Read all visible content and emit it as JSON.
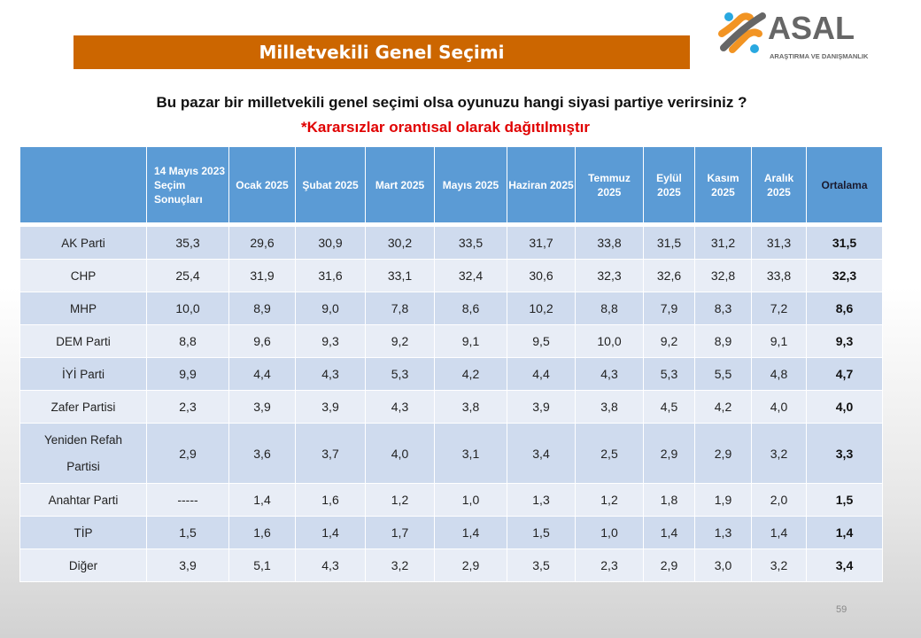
{
  "slide": {
    "title": "Milletvekili Genel Seçimi",
    "question": "Bu pazar bir milletvekili genel seçimi olsa oyunuzu hangi siyasi partiye verirsiniz ?",
    "note": "*Kararsızlar orantısal olarak dağıtılmıştır",
    "page_number": "59"
  },
  "logo": {
    "name": "ASAL",
    "tagline": "ARAŞTIRMA VE DANIŞMANLIK",
    "colors": {
      "orange": "#f29423",
      "blue": "#29a8e0",
      "gray": "#666666"
    }
  },
  "colors": {
    "title_bar": "#cc6600",
    "header": "#5b9bd5",
    "row_odd": "#cfdbee",
    "row_even": "#e8edf6",
    "note": "#e00000"
  },
  "table": {
    "headers": [
      "",
      "14 Mayıs 2023 Seçim Sonuçları",
      "Ocak 2025",
      "Şubat 2025",
      "Mart 2025",
      "Mayıs 2025",
      "Haziran 2025",
      "Temmuz 2025",
      "Eylül 2025",
      "Kasım 2025",
      "Aralık 2025",
      "Ortalama"
    ],
    "rows": [
      {
        "party": "AK Parti",
        "values": [
          "35,3",
          "29,6",
          "30,9",
          "30,2",
          "33,5",
          "31,7",
          "33,8",
          "31,5",
          "31,2",
          "31,3"
        ],
        "avg": "31,5"
      },
      {
        "party": "CHP",
        "values": [
          "25,4",
          "31,9",
          "31,6",
          "33,1",
          "32,4",
          "30,6",
          "32,3",
          "32,6",
          "32,8",
          "33,8"
        ],
        "avg": "32,3"
      },
      {
        "party": "MHP",
        "values": [
          "10,0",
          "8,9",
          "9,0",
          "7,8",
          "8,6",
          "10,2",
          "8,8",
          "7,9",
          "8,3",
          "7,2"
        ],
        "avg": "8,6"
      },
      {
        "party": "DEM Parti",
        "values": [
          "8,8",
          "9,6",
          "9,3",
          "9,2",
          "9,1",
          "9,5",
          "10,0",
          "9,2",
          "8,9",
          "9,1"
        ],
        "avg": "9,3"
      },
      {
        "party": "İYİ Parti",
        "values": [
          "9,9",
          "4,4",
          "4,3",
          "5,3",
          "4,2",
          "4,4",
          "4,3",
          "5,3",
          "5,5",
          "4,8"
        ],
        "avg": "4,7"
      },
      {
        "party": "Zafer Partisi",
        "values": [
          "2,3",
          "3,9",
          "3,9",
          "4,3",
          "3,8",
          "3,9",
          "3,8",
          "4,5",
          "4,2",
          "4,0"
        ],
        "avg": "4,0"
      },
      {
        "party": "Yeniden Refah Partisi",
        "values": [
          "2,9",
          "3,6",
          "3,7",
          "4,0",
          "3,1",
          "3,4",
          "2,5",
          "2,9",
          "2,9",
          "3,2"
        ],
        "avg": "3,3"
      },
      {
        "party": "Anahtar Parti",
        "values": [
          "-----",
          "1,4",
          "1,6",
          "1,2",
          "1,0",
          "1,3",
          "1,2",
          "1,8",
          "1,9",
          "2,0"
        ],
        "avg": "1,5"
      },
      {
        "party": "TİP",
        "values": [
          "1,5",
          "1,6",
          "1,4",
          "1,7",
          "1,4",
          "1,5",
          "1,0",
          "1,4",
          "1,3",
          "1,4"
        ],
        "avg": "1,4"
      },
      {
        "party": "Diğer",
        "values": [
          "3,9",
          "5,1",
          "4,3",
          "3,2",
          "2,9",
          "3,5",
          "2,3",
          "2,9",
          "3,0",
          "3,2"
        ],
        "avg": "3,4"
      }
    ]
  }
}
